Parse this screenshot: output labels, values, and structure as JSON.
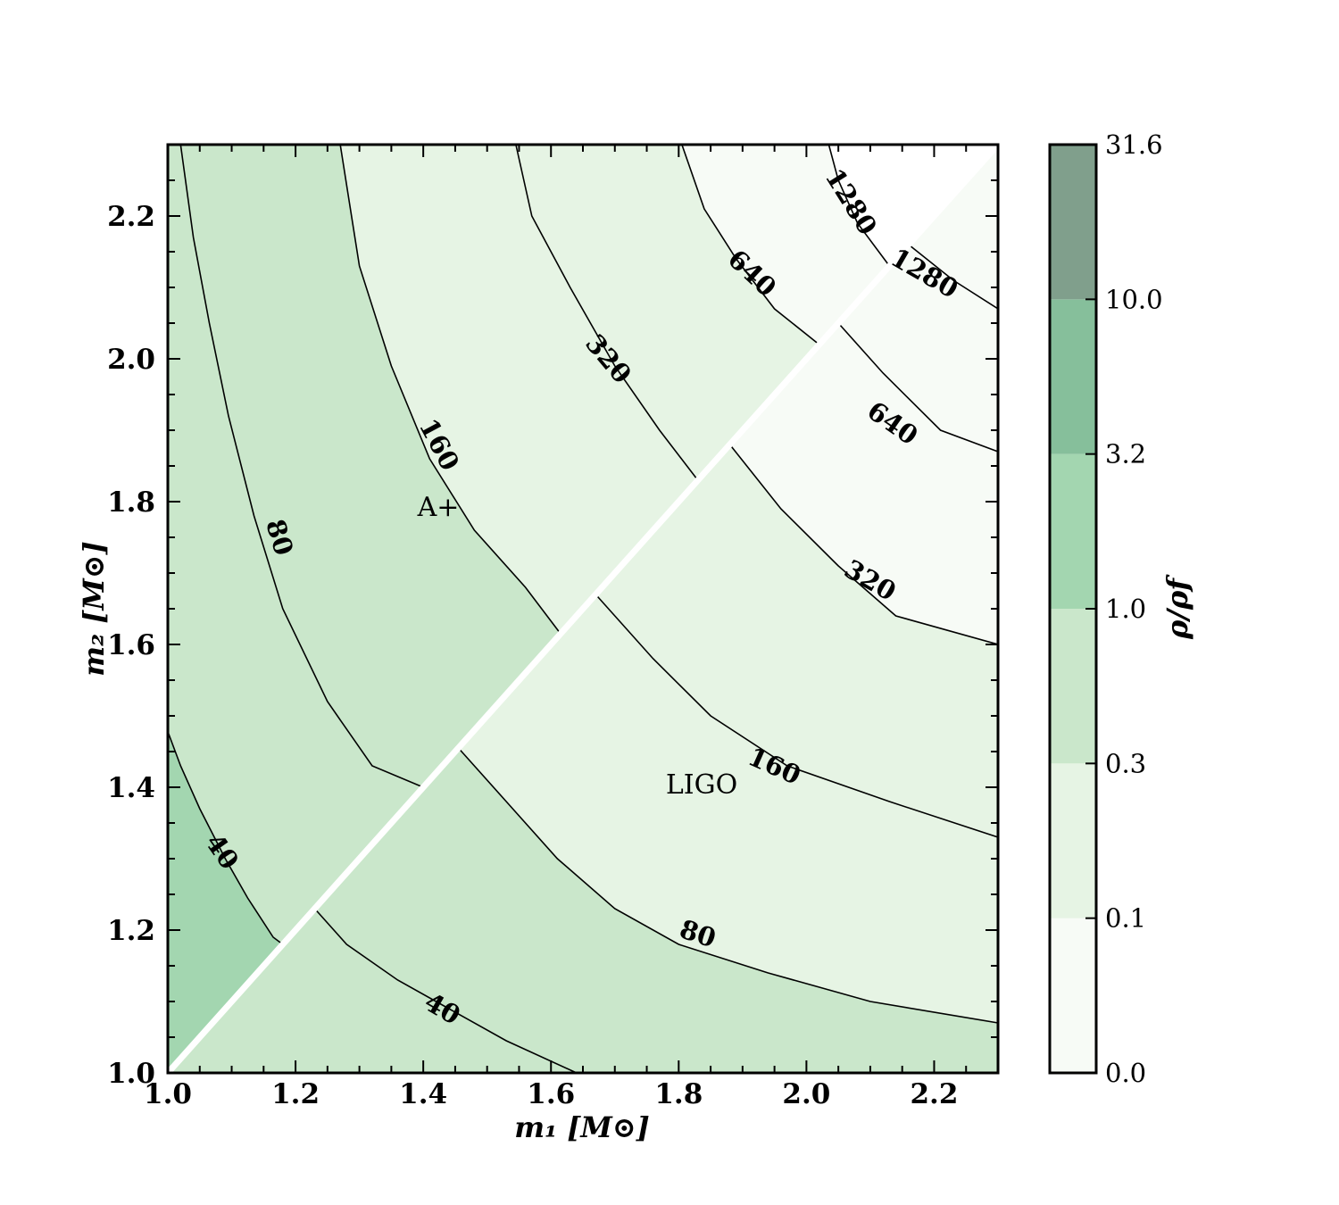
{
  "chart_data": {
    "type": "contour",
    "xlabel": "m₁ [M⊙]",
    "ylabel": "m₂ [M⊙]",
    "xlim": [
      1.0,
      2.3
    ],
    "ylim": [
      1.0,
      2.3
    ],
    "xticks": [
      "1.0",
      "1.2",
      "1.4",
      "1.6",
      "1.8",
      "2.0",
      "2.2"
    ],
    "yticks": [
      "1.0",
      "1.2",
      "1.4",
      "1.6",
      "1.8",
      "2.0",
      "2.2"
    ],
    "colorbar": {
      "label": "ρ/ρf",
      "ticks": [
        "0.0",
        "0.1",
        "0.3",
        "1.0",
        "3.2",
        "10.0",
        "31.6"
      ],
      "bands": [
        {
          "from": "0.0",
          "to": "0.1",
          "color": "#f7fbf6"
        },
        {
          "from": "0.1",
          "to": "0.3",
          "color": "#e6f4e4"
        },
        {
          "from": "0.3",
          "to": "1.0",
          "color": "#cae7cb"
        },
        {
          "from": "1.0",
          "to": "3.2",
          "color": "#a3d6b0"
        },
        {
          "from": "3.2",
          "to": "10.0",
          "color": "#86bf9b"
        },
        {
          "from": "10.0",
          "to": "31.6",
          "color": "#809f8c"
        }
      ]
    },
    "regions": [
      {
        "name": "A+",
        "side": "m2 > m1"
      },
      {
        "name": "LIGO",
        "side": "m2 < m1"
      }
    ],
    "contour_levels": [
      "40",
      "80",
      "160",
      "320",
      "640",
      "1280"
    ],
    "contours": [
      {
        "region": "A+",
        "level": "40",
        "points": [
          [
            1.0,
            1.478
          ],
          [
            1.02,
            1.43
          ],
          [
            1.05,
            1.37
          ],
          [
            1.09,
            1.3
          ],
          [
            1.125,
            1.245
          ],
          [
            1.165,
            1.19
          ],
          [
            1.18,
            1.18
          ]
        ]
      },
      {
        "region": "A+",
        "level": "80",
        "points": [
          [
            1.02,
            2.3
          ],
          [
            1.04,
            2.17
          ],
          [
            1.065,
            2.05
          ],
          [
            1.095,
            1.92
          ],
          [
            1.135,
            1.78
          ],
          [
            1.18,
            1.65
          ],
          [
            1.25,
            1.52
          ],
          [
            1.32,
            1.43
          ],
          [
            1.4,
            1.4
          ]
        ]
      },
      {
        "region": "A+",
        "level": "160",
        "points": [
          [
            1.27,
            2.3
          ],
          [
            1.3,
            2.13
          ],
          [
            1.35,
            1.99
          ],
          [
            1.41,
            1.86
          ],
          [
            1.48,
            1.76
          ],
          [
            1.56,
            1.68
          ],
          [
            1.615,
            1.615
          ]
        ]
      },
      {
        "region": "A+",
        "level": "320",
        "points": [
          [
            1.545,
            2.3
          ],
          [
            1.57,
            2.2
          ],
          [
            1.63,
            2.1
          ],
          [
            1.7,
            1.99
          ],
          [
            1.77,
            1.9
          ],
          [
            1.83,
            1.83
          ]
        ]
      },
      {
        "region": "A+",
        "level": "640",
        "points": [
          [
            1.805,
            2.3
          ],
          [
            1.84,
            2.21
          ],
          [
            1.89,
            2.14
          ],
          [
            1.95,
            2.07
          ],
          [
            2.02,
            2.02
          ]
        ]
      },
      {
        "region": "A+",
        "level": "1280",
        "points": [
          [
            2.035,
            2.3
          ],
          [
            2.05,
            2.25
          ],
          [
            2.08,
            2.19
          ],
          [
            2.13,
            2.13
          ]
        ]
      },
      {
        "region": "LIGO",
        "level": "40",
        "points": [
          [
            1.23,
            1.23
          ],
          [
            1.28,
            1.18
          ],
          [
            1.36,
            1.13
          ],
          [
            1.44,
            1.09
          ],
          [
            1.53,
            1.045
          ],
          [
            1.64,
            1.0
          ]
        ]
      },
      {
        "region": "LIGO",
        "level": "80",
        "points": [
          [
            1.455,
            1.455
          ],
          [
            1.53,
            1.38
          ],
          [
            1.61,
            1.3
          ],
          [
            1.7,
            1.23
          ],
          [
            1.8,
            1.18
          ],
          [
            1.94,
            1.14
          ],
          [
            2.1,
            1.1
          ],
          [
            2.3,
            1.07
          ]
        ]
      },
      {
        "region": "LIGO",
        "level": "160",
        "points": [
          [
            1.67,
            1.67
          ],
          [
            1.76,
            1.58
          ],
          [
            1.85,
            1.5
          ],
          [
            1.97,
            1.43
          ],
          [
            2.13,
            1.38
          ],
          [
            2.3,
            1.33
          ]
        ]
      },
      {
        "region": "LIGO",
        "level": "320",
        "points": [
          [
            1.88,
            1.88
          ],
          [
            1.96,
            1.79
          ],
          [
            2.05,
            1.71
          ],
          [
            2.14,
            1.64
          ],
          [
            2.3,
            1.6
          ]
        ]
      },
      {
        "region": "LIGO",
        "level": "640",
        "points": [
          [
            2.05,
            2.05
          ],
          [
            2.12,
            1.98
          ],
          [
            2.21,
            1.9
          ],
          [
            2.3,
            1.87
          ]
        ]
      },
      {
        "region": "LIGO",
        "level": "1280",
        "points": [
          [
            2.16,
            2.16
          ],
          [
            2.23,
            2.11
          ],
          [
            2.3,
            2.07
          ]
        ]
      }
    ],
    "contour_labels": [
      {
        "text": "80",
        "at": [
          1.175,
          1.75
        ],
        "angle": 73
      },
      {
        "text": "40",
        "at": [
          1.085,
          1.31
        ],
        "angle": 55
      },
      {
        "text": "160",
        "at": [
          1.425,
          1.88
        ],
        "angle": 62
      },
      {
        "text": "320",
        "at": [
          1.69,
          2.0
        ],
        "angle": 50
      },
      {
        "text": "640",
        "at": [
          1.915,
          2.12
        ],
        "angle": 43
      },
      {
        "text": "1280",
        "at": [
          2.07,
          2.22
        ],
        "angle": 58
      },
      {
        "text": "1280",
        "at": [
          2.185,
          2.12
        ],
        "angle": 30
      },
      {
        "text": "640",
        "at": [
          2.135,
          1.91
        ],
        "angle": 35
      },
      {
        "text": "320",
        "at": [
          2.1,
          1.69
        ],
        "angle": 30
      },
      {
        "text": "160",
        "at": [
          1.95,
          1.43
        ],
        "angle": 24
      },
      {
        "text": "80",
        "at": [
          1.83,
          1.195
        ],
        "angle": 18
      },
      {
        "text": "40",
        "at": [
          1.43,
          1.09
        ],
        "angle": 30
      }
    ],
    "grid": false
  }
}
